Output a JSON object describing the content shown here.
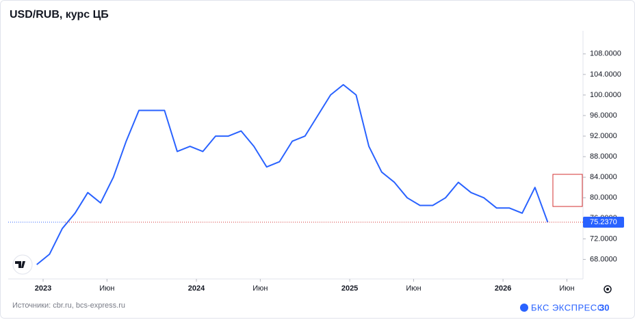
{
  "chart_data": {
    "type": "line",
    "title": "USD/RUB, курс ЦБ",
    "x": [
      "2022-12",
      "2023-01",
      "2023-02",
      "2023-03",
      "2023-04",
      "2023-05",
      "2023-06",
      "2023-07",
      "2023-08",
      "2023-09",
      "2023-10",
      "2023-11",
      "2023-12",
      "2024-01",
      "2024-02",
      "2024-03",
      "2024-04",
      "2024-05",
      "2024-06",
      "2024-07",
      "2024-08",
      "2024-09",
      "2024-10",
      "2024-11",
      "2024-12",
      "2025-01",
      "2025-02",
      "2025-03",
      "2025-04",
      "2025-05",
      "2025-06",
      "2025-07",
      "2025-08",
      "2025-09",
      "2025-10",
      "2025-11",
      "2025-12",
      "2026-01",
      "2026-02",
      "2026-03",
      "2026-04"
    ],
    "values": [
      67,
      69,
      74,
      77,
      81,
      79,
      84,
      91,
      97,
      97,
      97,
      89,
      90,
      89,
      92,
      92,
      93,
      90,
      86,
      87,
      91,
      92,
      96,
      100,
      102,
      100,
      90,
      85,
      83,
      80,
      78.5,
      78.5,
      80,
      83,
      81,
      80,
      78,
      78,
      77,
      82,
      75.237
    ],
    "color": "#2962ff",
    "last_value": {
      "value": 75.237,
      "label": "75.2370"
    },
    "ylim": [
      64.2,
      112.5
    ],
    "yticks": [
      {
        "value": 68,
        "label": "68.0000"
      },
      {
        "value": 72,
        "label": "72.0000"
      },
      {
        "value": 76,
        "label": "76.0000"
      },
      {
        "value": 80,
        "label": "80.0000"
      },
      {
        "value": 84,
        "label": "84.0000"
      },
      {
        "value": 88,
        "label": "88.0000"
      },
      {
        "value": 92,
        "label": "92.0000"
      },
      {
        "value": 96,
        "label": "96.0000"
      },
      {
        "value": 100,
        "label": "100.0000"
      },
      {
        "value": 104,
        "label": "104.0000"
      },
      {
        "value": 108,
        "label": "108.0000"
      }
    ],
    "xticks": [
      {
        "value": "2023-01",
        "label": "2023"
      },
      {
        "value": "2023-06",
        "label": "Июн"
      },
      {
        "value": "2024-01",
        "label": "2024"
      },
      {
        "value": "2024-06",
        "label": "Июн"
      },
      {
        "value": "2025-01",
        "label": "2025"
      },
      {
        "value": "2025-06",
        "label": "Июн"
      },
      {
        "value": "2026-01",
        "label": "2026"
      },
      {
        "value": "2026-06",
        "label": "Июн"
      }
    ],
    "source": "Источники: cbr.ru, bcs-express.ru",
    "brand": "БКС ЭКСПРЕСС"
  }
}
